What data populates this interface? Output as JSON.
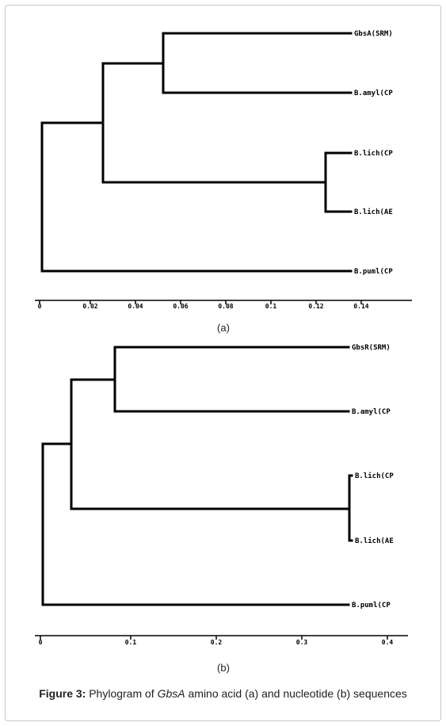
{
  "panels": [
    {
      "id": "a",
      "label": "(a)",
      "leaves": [
        "GbsA(SRM)",
        "B.amyl(CP",
        "B.lich(CP",
        "B.lich(AE",
        "B.puml(CP"
      ],
      "axis": {
        "min": 0,
        "max": 0.14,
        "ticks": [
          "0",
          "0.02",
          "0.04",
          "0.06",
          "0.08",
          "0.1",
          "0.12",
          "0.14"
        ]
      }
    },
    {
      "id": "b",
      "label": "(b)",
      "leaves": [
        "GbsR(SRM)",
        "B.amyl(CP",
        "B.lich(CP",
        "B.lich(AE",
        "B.puml(CP"
      ],
      "axis": {
        "min": 0,
        "max": 0.4,
        "ticks": [
          "0",
          "0.1",
          "0.2",
          "0.3",
          "0.4"
        ]
      }
    }
  ],
  "caption": {
    "prefix": "Figure 3:",
    "part1": " Phylogram of ",
    "gene": "GbsA",
    "part2": " amino acid (a) and nucleotide (b) sequences"
  }
}
